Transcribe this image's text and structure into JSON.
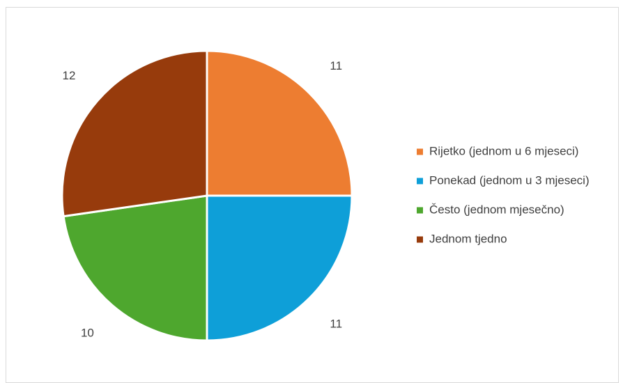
{
  "chart_data": {
    "type": "pie",
    "title": "",
    "legend_position": "right",
    "start_angle_deg": 0,
    "direction": "clockwise",
    "slices": [
      {
        "label": "Rijetko (jednom u 6 mjeseci)",
        "value": 11,
        "color": "#ED7D31"
      },
      {
        "label": "Ponekad (jednom u 3 mjeseci)",
        "value": 11,
        "color": "#0E9FD8"
      },
      {
        "label": "Često (jednom mjesečno)",
        "value": 10,
        "color": "#4EA72E"
      },
      {
        "label": "Jednom tjedno",
        "value": 12,
        "color": "#973B0C"
      }
    ]
  }
}
